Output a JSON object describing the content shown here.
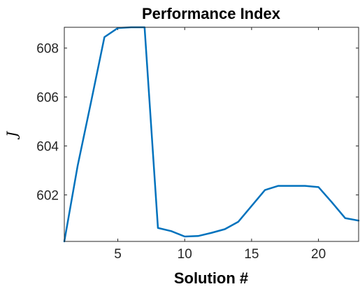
{
  "chart_data": {
    "type": "line",
    "title": "Performance Index",
    "xlabel": "Solution #",
    "ylabel": "J",
    "xlim": [
      1,
      23
    ],
    "ylim": [
      600.1,
      608.85
    ],
    "x_ticks": [
      5,
      10,
      15,
      20
    ],
    "y_ticks": [
      602,
      604,
      606,
      608
    ],
    "grid": false,
    "legend": "none",
    "series": [
      {
        "color": "#0072BD",
        "x": [
          1,
          2,
          3,
          4,
          5,
          6,
          7,
          8,
          9,
          10,
          11,
          12,
          13,
          14,
          15,
          16,
          17,
          18,
          19,
          20,
          21,
          22,
          23
        ],
        "y": [
          600.1,
          603.2,
          605.8,
          608.45,
          608.82,
          608.85,
          608.85,
          600.65,
          600.52,
          600.3,
          600.32,
          600.45,
          600.6,
          600.9,
          601.55,
          602.2,
          602.37,
          602.37,
          602.37,
          602.32,
          601.7,
          601.05,
          600.95
        ]
      }
    ]
  }
}
